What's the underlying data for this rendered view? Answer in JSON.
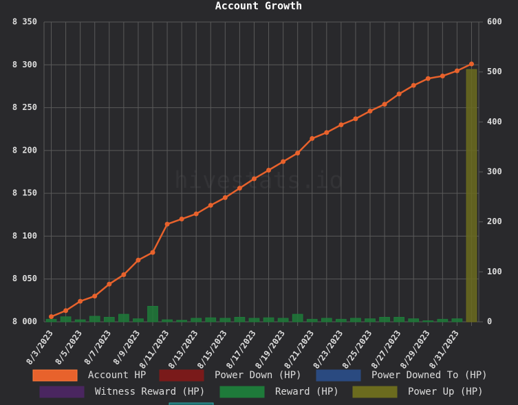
{
  "chart_data": {
    "type": "bar_line",
    "title": "Account Growth",
    "watermark": "hivestats.io",
    "categories": [
      "8/3/2023",
      null,
      "8/5/2023",
      null,
      "8/7/2023",
      null,
      "8/9/2023",
      null,
      "8/11/2023",
      null,
      "8/13/2023",
      null,
      "8/15/2023",
      null,
      "8/17/2023",
      null,
      "8/19/2023",
      null,
      "8/21/2023",
      null,
      "8/23/2023",
      null,
      "8/25/2023",
      null,
      "8/27/2023",
      null,
      "8/29/2023",
      null,
      "8/31/2023",
      null
    ],
    "series": [
      {
        "name": "Account HP",
        "color": "#e8622c",
        "kind": "line",
        "axis": "y",
        "values": [
          8006,
          8013,
          8024,
          8030,
          8044,
          8055,
          8072,
          8081,
          8114,
          8120,
          8126,
          8136,
          8145,
          8156,
          8167,
          8177,
          8187,
          8197,
          8214,
          8221,
          8230,
          8237,
          8246,
          8254,
          8266,
          8276,
          8284,
          8287,
          8293,
          8301
        ]
      },
      {
        "name": "Power Down (HP)",
        "color": "#7a1a1a",
        "kind": "bar",
        "axis": "y2"
      },
      {
        "name": "Power Downed To (HP)",
        "color": "#2a4a80",
        "kind": "bar",
        "axis": "y2"
      },
      {
        "name": "Witness Reward (HP)",
        "color": "#4a2660",
        "kind": "bar",
        "axis": "y2"
      },
      {
        "name": "Reward (HP)",
        "color": "#1e7a3a",
        "kind": "bar",
        "axis": "y2",
        "values": [
          5,
          10,
          4,
          11,
          9,
          15,
          6,
          31,
          4,
          3,
          7,
          8,
          7,
          9,
          7,
          8,
          7,
          15,
          5,
          7,
          5,
          7,
          6,
          9,
          9,
          6,
          2,
          5,
          6,
          0
        ]
      },
      {
        "name": "Power Up (HP)",
        "color": "#6b6b1e",
        "kind": "bar",
        "axis": "y2",
        "values": [
          0,
          0,
          0,
          0,
          0,
          0,
          0,
          0,
          0,
          0,
          0,
          0,
          0,
          0,
          0,
          0,
          0,
          0,
          0,
          0,
          0,
          0,
          0,
          0,
          0,
          0,
          0,
          0,
          0,
          505
        ]
      }
    ],
    "ylim": [
      8000,
      8350
    ],
    "yticks": [
      {
        "value": 8000,
        "label": "8 000"
      },
      {
        "value": 8050,
        "label": "8 050"
      },
      {
        "value": 8100,
        "label": "8 100"
      },
      {
        "value": 8150,
        "label": "8 150"
      },
      {
        "value": 8200,
        "label": "8 200"
      },
      {
        "value": 8250,
        "label": "8 250"
      },
      {
        "value": 8300,
        "label": "8 300"
      },
      {
        "value": 8350,
        "label": "8 350"
      }
    ],
    "y2lim": [
      0,
      600
    ],
    "y2ticks": [
      0,
      100,
      200,
      300,
      400,
      500,
      600
    ],
    "grid": true
  }
}
